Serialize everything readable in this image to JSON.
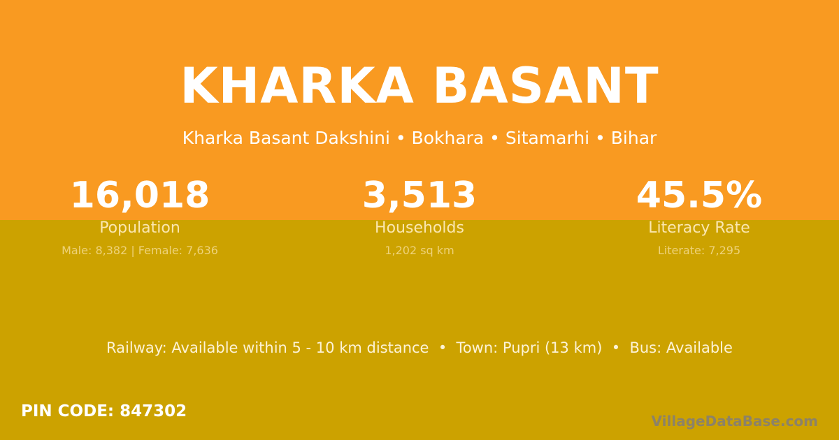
{
  "colors": {
    "top_bg": "#f99a21",
    "bottom_bg": "#cca200"
  },
  "title": "KHARKA BASANT",
  "subtitle": "Kharka Basant Dakshini • Bokhara • Sitamarhi • Bihar",
  "stats": [
    {
      "value": "16,018",
      "label": "Population",
      "detail": "Male: 8,382 | Female: 7,636"
    },
    {
      "value": "3,513",
      "label": "Households",
      "detail": "1,202 sq km"
    },
    {
      "value": "45.5%",
      "label": "Literacy Rate",
      "detail": "Literate: 7,295"
    }
  ],
  "info": "Railway: Available within 5 - 10 km distance  •  Town: Pupri (13 km)  •  Bus: Available",
  "pin": "PIN CODE: 847302",
  "brand": "VillageDataBase.com"
}
